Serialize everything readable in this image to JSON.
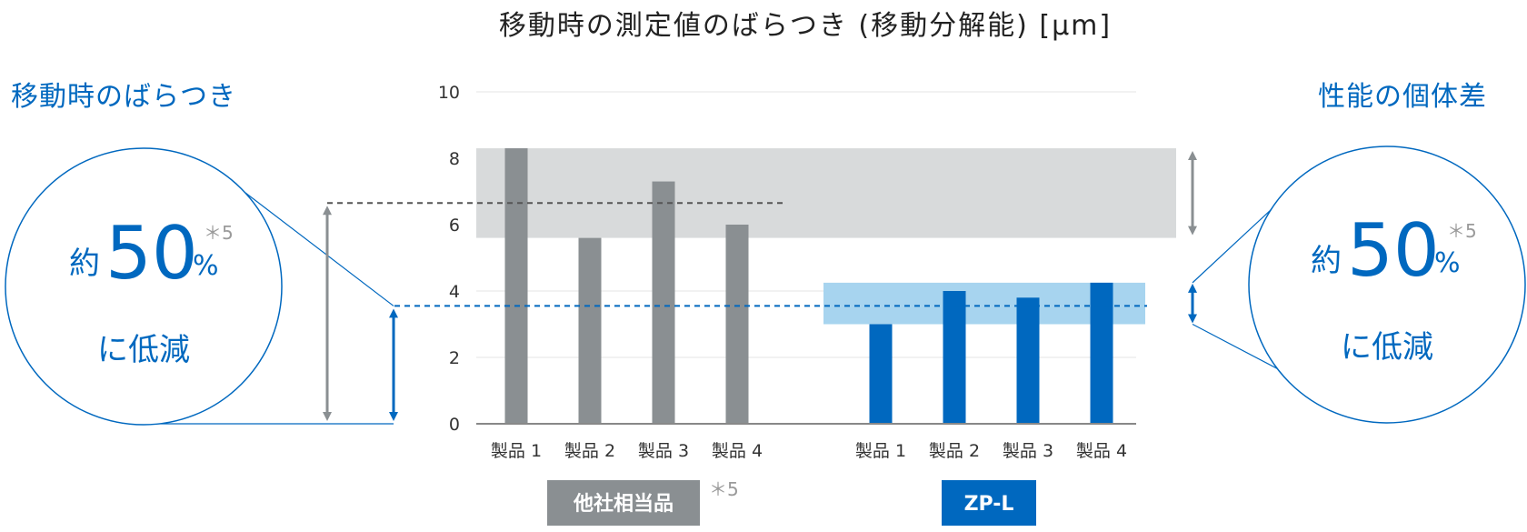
{
  "chart_data": {
    "type": "bar",
    "title": "移動時の測定値のばらつき (移動分解能) [µm]",
    "ylim": [
      0,
      10
    ],
    "yticks": [
      0,
      2,
      4,
      6,
      8,
      10
    ],
    "ytick_labels": [
      "0",
      "2",
      "4",
      "6",
      "8",
      "10"
    ],
    "groups": [
      {
        "name": "他社相当品",
        "note": "＊5",
        "color": "#8a8f92",
        "band_color": "#d8dadb",
        "categories": [
          "製品 1",
          "製品 2",
          "製品 3",
          "製品 4"
        ],
        "values": [
          8.3,
          5.6,
          7.3,
          6.0
        ],
        "band_range": [
          5.6,
          8.3
        ]
      },
      {
        "name": "ZP-L",
        "color": "#0068bf",
        "band_color": "#a7d4ef",
        "categories": [
          "製品 1",
          "製品 2",
          "製品 3",
          "製品 4"
        ],
        "values": [
          3.0,
          4.0,
          3.8,
          4.25
        ],
        "band_range": [
          3.0,
          4.25
        ]
      }
    ],
    "reference_lines": [
      {
        "name": "他社相当品",
        "value": 6.65,
        "color": "#555555"
      },
      {
        "name": "ZP-L",
        "value": 3.55,
        "color": "#0068bf"
      }
    ],
    "grid": true
  },
  "callouts": {
    "left": {
      "heading": "移動時のばらつき",
      "prefix": "約",
      "value": "50",
      "unit": "%",
      "note": "＊5",
      "suffix": "に低減"
    },
    "right": {
      "heading": "性能の個体差",
      "prefix": "約",
      "value": "50",
      "unit": "%",
      "note": "＊5",
      "suffix": "に低減"
    }
  },
  "colors": {
    "accent": "#0068bf",
    "gray": "#8a8f92",
    "axis": "#888888",
    "grid": "#e6e6e6"
  }
}
